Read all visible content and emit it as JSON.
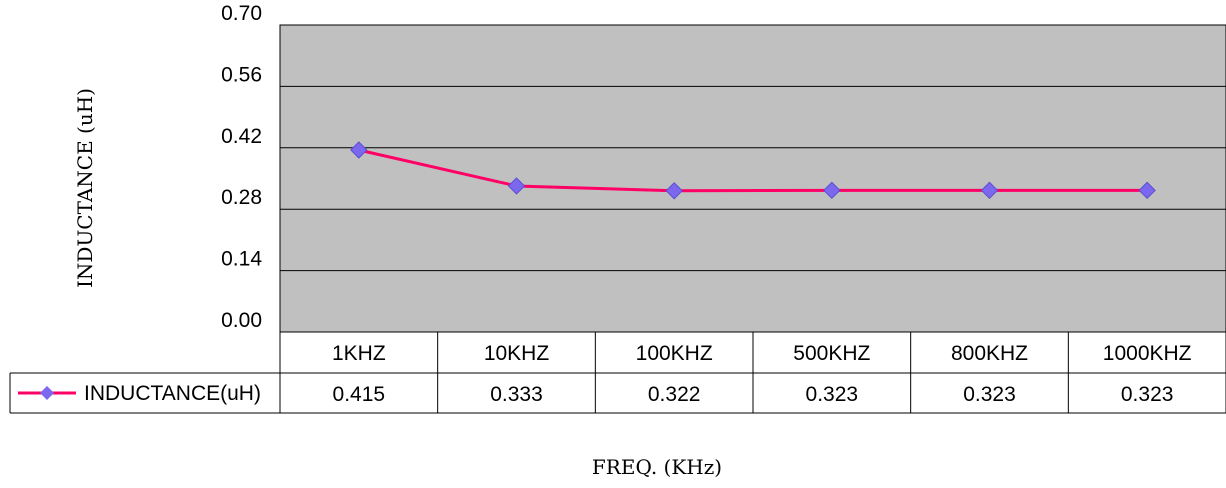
{
  "chart_data": {
    "type": "line",
    "title": "",
    "xlabel": "FREQ. (KHz)",
    "ylabel": "INDUCTANCE (uH)",
    "ylim": [
      0,
      0.7
    ],
    "yticks": [
      "0.70",
      "0.56",
      "0.42",
      "0.28",
      "0.14",
      "0.00"
    ],
    "grid": true,
    "legend": "data-table-left",
    "categories": [
      "1KHZ",
      "10KHZ",
      "100KHZ",
      "500KHZ",
      "800KHZ",
      "1000KHZ"
    ],
    "series": [
      {
        "name": "INDUCTANCE(uH)",
        "values": [
          0.415,
          0.333,
          0.322,
          0.323,
          0.323,
          0.323
        ],
        "table_values": [
          "0.415",
          "0.333",
          "0.322",
          "0.323",
          "0.323",
          "0.323"
        ],
        "line_color": "#ff0066",
        "marker_color": "#7b68ee",
        "marker": "diamond"
      }
    ],
    "plot_background": "#c0c0c0"
  }
}
